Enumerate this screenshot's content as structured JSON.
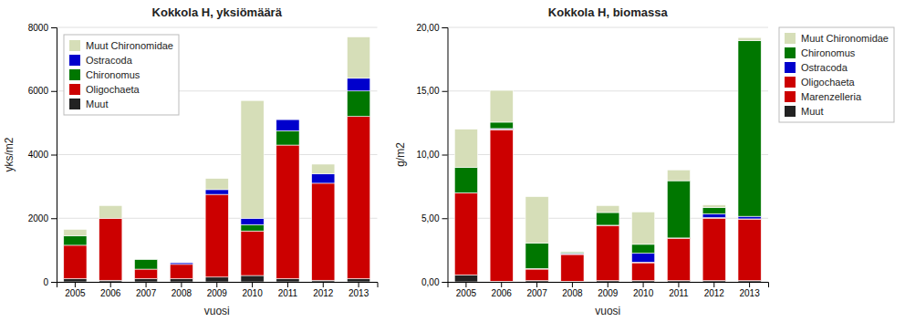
{
  "chart_data": [
    {
      "type": "bar",
      "stacked": true,
      "title": "Kokkola H, yksiömäärä",
      "xlabel": "vuosi",
      "ylabel": "yks/m2",
      "categories": [
        "2005",
        "2006",
        "2007",
        "2008",
        "2009",
        "2010",
        "2011",
        "2012",
        "2013"
      ],
      "series": [
        {
          "name": "Muut",
          "color": "#222222",
          "values": [
            100,
            50,
            100,
            100,
            150,
            200,
            100,
            50,
            100
          ]
        },
        {
          "name": "Oligochaeta",
          "color": "#cc0000",
          "values": [
            1050,
            1950,
            300,
            450,
            2600,
            1400,
            4200,
            3050,
            5100
          ]
        },
        {
          "name": "Chironomus",
          "color": "#007700",
          "values": [
            300,
            0,
            300,
            0,
            0,
            200,
            450,
            0,
            800
          ]
        },
        {
          "name": "Ostracoda",
          "color": "#0000cc",
          "values": [
            0,
            0,
            0,
            50,
            150,
            200,
            350,
            300,
            400
          ]
        },
        {
          "name": "Muut Chironomidae",
          "color": "#d6deb8",
          "values": [
            200,
            400,
            0,
            0,
            350,
            3700,
            0,
            300,
            1300
          ]
        }
      ],
      "ylim": [
        0,
        8000
      ],
      "yticks": [
        0,
        2000,
        4000,
        6000,
        8000
      ],
      "grid": true,
      "legend": "upper left"
    },
    {
      "type": "bar",
      "stacked": true,
      "title": "Kokkola H, biomassa",
      "xlabel": "vuosi",
      "ylabel": "g/m2",
      "categories": [
        "2005",
        "2006",
        "2007",
        "2008",
        "2009",
        "2010",
        "2011",
        "2012",
        "2013"
      ],
      "series": [
        {
          "name": "Muut",
          "color": "#222222",
          "values": [
            0.55,
            0.05,
            0.1,
            0.05,
            0.1,
            0.1,
            0.1,
            0.1,
            0.1
          ]
        },
        {
          "name": "Marenzelleria",
          "color": "#cc0000",
          "values": [
            6.45,
            11.9,
            0.9,
            2.1,
            4.3,
            1.4,
            3.3,
            4.9,
            4.8
          ]
        },
        {
          "name": "Oligochaeta",
          "color": "#cc0000",
          "values": [
            0.0,
            0.05,
            0.05,
            0.05,
            0.05,
            0.05,
            0.05,
            0.05,
            0.05
          ]
        },
        {
          "name": "Ostracoda",
          "color": "#0000cc",
          "values": [
            0.0,
            0.05,
            0.0,
            0.05,
            0.0,
            0.7,
            0.0,
            0.3,
            0.2
          ]
        },
        {
          "name": "Chironomus",
          "color": "#007700",
          "values": [
            2.0,
            0.5,
            2.0,
            0.1,
            1.0,
            0.7,
            4.5,
            0.5,
            13.8
          ]
        },
        {
          "name": "Muut Chironomidae",
          "color": "#d6deb8",
          "values": [
            3.0,
            2.5,
            3.65,
            0.05,
            0.55,
            2.55,
            0.85,
            0.2,
            0.25
          ]
        }
      ],
      "ylim": [
        0,
        20
      ],
      "yticks": [
        {
          "value": 0,
          "label": "0,00"
        },
        {
          "value": 5,
          "label": "5,00"
        },
        {
          "value": 10,
          "label": "10,00"
        },
        {
          "value": 15,
          "label": "15,00"
        },
        {
          "value": 20,
          "label": "20,00"
        }
      ],
      "grid": true,
      "legend": "upper right"
    }
  ]
}
